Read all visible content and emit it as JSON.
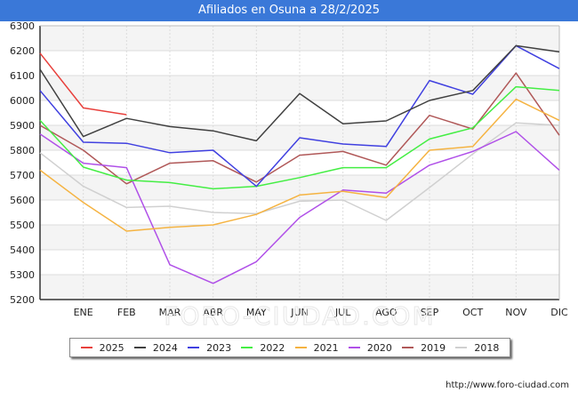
{
  "title": "Afiliados en Osuna a 28/2/2025",
  "source": "http://www.foro-ciudad.com",
  "watermark": "FORO-CIUDAD.COM",
  "chart_data": {
    "type": "line",
    "categories": [
      "",
      "ENE",
      "FEB",
      "MAR",
      "ABR",
      "MAY",
      "JUN",
      "JUL",
      "AGO",
      "SEP",
      "OCT",
      "NOV",
      "DIC"
    ],
    "ylim": [
      5200,
      6300
    ],
    "yticks": [
      5200,
      5300,
      5400,
      5500,
      5600,
      5700,
      5800,
      5900,
      6000,
      6100,
      6200,
      6300
    ],
    "grid": true,
    "legend_position": "bottom",
    "series": [
      {
        "name": "2025",
        "color": "#e8403c",
        "values": [
          6190,
          5970,
          5943,
          null,
          null,
          null,
          null,
          null,
          null,
          null,
          null,
          null,
          null
        ]
      },
      {
        "name": "2024",
        "color": "#404040",
        "values": [
          6125,
          5855,
          5928,
          5895,
          5878,
          5838,
          6028,
          5906,
          5918,
          6000,
          6040,
          6220,
          6195
        ]
      },
      {
        "name": "2023",
        "color": "#4040e0",
        "values": [
          6040,
          5832,
          5828,
          5790,
          5800,
          5655,
          5850,
          5825,
          5815,
          6080,
          6025,
          6220,
          6128
        ]
      },
      {
        "name": "2022",
        "color": "#44ee44",
        "values": [
          5920,
          5732,
          5680,
          5670,
          5645,
          5655,
          5690,
          5730,
          5730,
          5845,
          5890,
          6055,
          6040
        ]
      },
      {
        "name": "2021",
        "color": "#f5b341",
        "values": [
          5720,
          5590,
          5475,
          5490,
          5500,
          5542,
          5620,
          5635,
          5610,
          5800,
          5815,
          6005,
          5920
        ]
      },
      {
        "name": "2020",
        "color": "#b050e8",
        "values": [
          5865,
          5748,
          5730,
          5340,
          5265,
          5352,
          5530,
          5640,
          5628,
          5740,
          5795,
          5875,
          5720
        ]
      },
      {
        "name": "2019",
        "color": "#b05858",
        "values": [
          5900,
          5800,
          5665,
          5748,
          5758,
          5672,
          5780,
          5795,
          5740,
          5940,
          5885,
          6110,
          5860
        ]
      },
      {
        "name": "2018",
        "color": "#d0d0d0",
        "values": [
          5790,
          5655,
          5570,
          5575,
          5550,
          5545,
          5595,
          5600,
          5518,
          5650,
          5785,
          5910,
          5900
        ]
      }
    ]
  }
}
